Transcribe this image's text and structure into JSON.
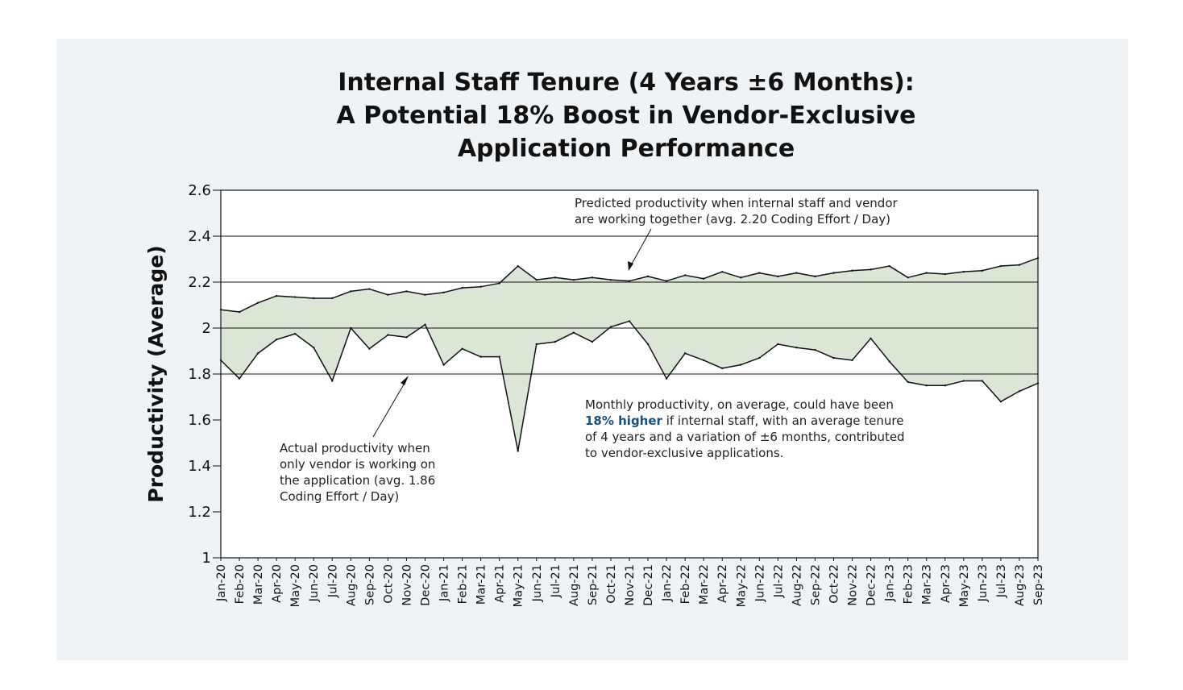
{
  "colors": {
    "panel_bg": "#eff3f6",
    "plot_bg": "#ffffff",
    "band_fill": "#dbe6d6",
    "line": "#111111",
    "grid": "#111111",
    "highlight": "#1b4f7e"
  },
  "chart_data": {
    "type": "area",
    "title_lines": [
      "Internal Staff Tenure (4 Years ±6 Months):",
      "A Potential 18% Boost in Vendor-Exclusive",
      "Application Performance"
    ],
    "xlabel": "",
    "ylabel": "Productivity (Average)",
    "ylim": [
      1,
      2.6
    ],
    "yticks": [
      1,
      1.2,
      1.4,
      1.6,
      1.8,
      2,
      2.2,
      2.4,
      2.6
    ],
    "ytick_labels": [
      "1",
      "1.2",
      "1.4",
      "1.6",
      "1.8",
      "2",
      "2.2",
      "2.4",
      "2.6"
    ],
    "gridlines": [
      1.8,
      2.0,
      2.2,
      2.4
    ],
    "categories": [
      "Jan-20",
      "Feb-20",
      "Mar-20",
      "Apr-20",
      "May-20",
      "Jun-20",
      "Jul-20",
      "Aug-20",
      "Sep-20",
      "Oct-20",
      "Nov-20",
      "Dec-20",
      "Jan-21",
      "Feb-21",
      "Mar-21",
      "Apr-21",
      "May-21",
      "Jun-21",
      "Jul-21",
      "Aug-21",
      "Sep-21",
      "Oct-21",
      "Nov-21",
      "Dec-21",
      "Jan-22",
      "Feb-22",
      "Mar-22",
      "Apr-22",
      "May-22",
      "Jun-22",
      "Jul-22",
      "Aug-22",
      "Sep-22",
      "Oct-22",
      "Nov-22",
      "Dec-22",
      "Jan-23",
      "Feb-23",
      "Mar-23",
      "Apr-23",
      "May-23",
      "Jun-23",
      "Jul-23",
      "Aug-23",
      "Sep-23"
    ],
    "series": [
      {
        "name": "Predicted productivity (internal staff + vendor)",
        "values": [
          2.08,
          2.07,
          2.11,
          2.14,
          2.135,
          2.13,
          2.13,
          2.16,
          2.17,
          2.145,
          2.16,
          2.145,
          2.155,
          2.175,
          2.18,
          2.195,
          2.27,
          2.21,
          2.22,
          2.21,
          2.22,
          2.21,
          2.205,
          2.225,
          2.205,
          2.23,
          2.215,
          2.245,
          2.22,
          2.24,
          2.225,
          2.24,
          2.225,
          2.24,
          2.25,
          2.255,
          2.27,
          2.22,
          2.24,
          2.235,
          2.245,
          2.25,
          2.27,
          2.275,
          2.305
        ]
      },
      {
        "name": "Actual productivity (vendor only)",
        "values": [
          1.86,
          1.78,
          1.89,
          1.95,
          1.975,
          1.915,
          1.77,
          2.0,
          1.91,
          1.97,
          1.96,
          2.015,
          1.84,
          1.91,
          1.875,
          1.875,
          1.465,
          1.93,
          1.94,
          1.98,
          1.94,
          2.005,
          2.03,
          1.93,
          1.78,
          1.89,
          1.86,
          1.825,
          1.84,
          1.87,
          1.93,
          1.915,
          1.905,
          1.87,
          1.86,
          1.955,
          1.855,
          1.765,
          1.75,
          1.75,
          1.77,
          1.77,
          1.68,
          1.725,
          1.76
        ]
      }
    ],
    "annotations": {
      "predicted": [
        "Predicted productivity when internal staff and vendor",
        "are working together (avg. 2.20 Coding Effort / Day)"
      ],
      "actual": [
        "Actual productivity when",
        "only vendor is working on",
        "the application (avg. 1.86",
        "Coding Effort / Day)"
      ],
      "summary": {
        "line1": "Monthly productivity, on average, could have been",
        "line2_bold": "18% higher",
        "line2_rest": " if internal staff, with an average tenure",
        "line3": "of 4 years and a variation of ±6 months, contributed",
        "line4": "to vendor-exclusive applications."
      }
    }
  }
}
